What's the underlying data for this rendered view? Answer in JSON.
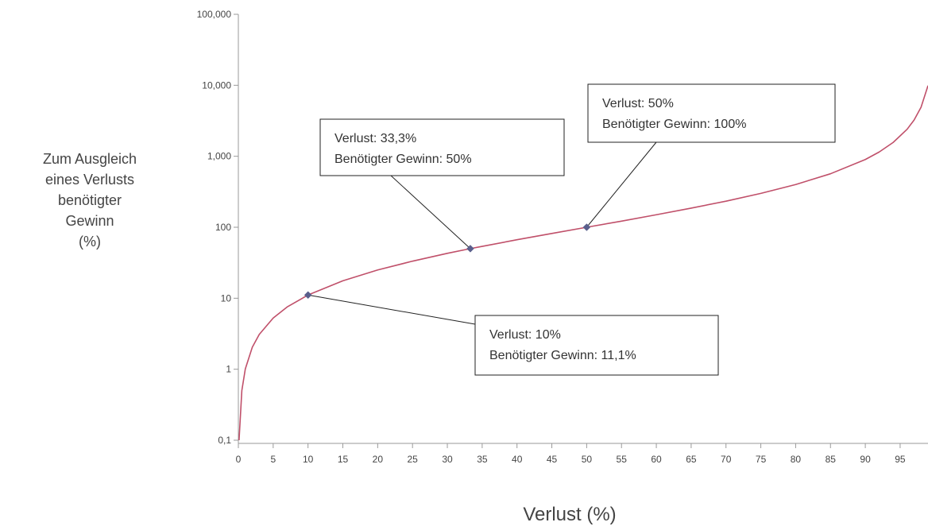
{
  "chart_data": {
    "type": "line",
    "title": "",
    "xlabel": "Verlust (%)",
    "ylabel_lines": [
      "Zum Ausgleich",
      "eines Verlusts",
      "benötigter",
      "Gewinn",
      "(%)"
    ],
    "x_scale": "linear",
    "y_scale": "log",
    "xlim": [
      0,
      99
    ],
    "ylim": [
      0.1,
      100000
    ],
    "x_ticks": [
      0,
      5,
      10,
      15,
      20,
      25,
      30,
      35,
      40,
      45,
      50,
      55,
      60,
      65,
      70,
      75,
      80,
      85,
      90,
      95
    ],
    "x_tick_labels": [
      "0",
      "5",
      "10",
      "15",
      "20",
      "25",
      "30",
      "35",
      "40",
      "45",
      "50",
      "55",
      "60",
      "65",
      "70",
      "75",
      "80",
      "85",
      "90",
      "95"
    ],
    "y_ticks": [
      0.1,
      1,
      10,
      100,
      1000,
      10000,
      100000
    ],
    "y_tick_labels": [
      "0,1",
      "1",
      "10",
      "100",
      "1,000",
      "10,000",
      "100,000"
    ],
    "grid": false,
    "legend": "none",
    "series_color": "#c0506a",
    "marker_color": "#5a5f8c",
    "series": [
      {
        "x": [
          0.1,
          0.5,
          1,
          2,
          3,
          5,
          7,
          10,
          15,
          20,
          25,
          30,
          33.3,
          35,
          40,
          45,
          50,
          55,
          60,
          65,
          70,
          75,
          80,
          85,
          90,
          92,
          94,
          96,
          97,
          98,
          99
        ],
        "values": [
          0.1,
          0.5,
          1.01,
          2.04,
          3.09,
          5.26,
          7.53,
          11.1,
          17.6,
          25,
          33.3,
          42.9,
          50,
          53.8,
          66.7,
          81.8,
          100,
          122,
          150,
          186,
          233,
          300,
          400,
          567,
          900,
          1150,
          1567,
          2400,
          3233,
          4900,
          9900
        ]
      }
    ],
    "markers": [
      {
        "x": 10,
        "y": 11.1
      },
      {
        "x": 33.3,
        "y": 50
      },
      {
        "x": 50,
        "y": 100
      }
    ],
    "annotations": [
      {
        "line1": "Verlust: 10%",
        "line2": "Benötigter Gewinn: 11,1%",
        "target_x": 10,
        "target_y": 11.1
      },
      {
        "line1": "Verlust: 33,3%",
        "line2": "Benötigter Gewinn: 50%",
        "target_x": 33.3,
        "target_y": 50
      },
      {
        "line1": "Verlust: 50%",
        "line2": "Benötigter Gewinn: 100%",
        "target_x": 50,
        "target_y": 100
      }
    ]
  }
}
